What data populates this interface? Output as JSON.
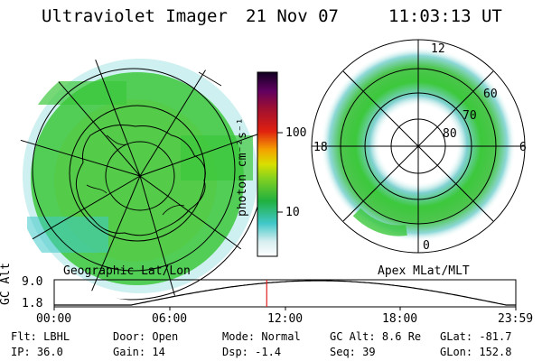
{
  "header": {
    "instrument": "Ultraviolet Imager",
    "date": "21 Nov 07",
    "time": "11:03:13 UT"
  },
  "colorbar": {
    "unit_label": "photon cm⁻²s⁻¹",
    "ticks": [
      "100",
      "10"
    ]
  },
  "left_panel": {
    "label": "Geographic Lat/Lon"
  },
  "right_panel": {
    "label": "Apex MLat/MLT",
    "mlt_labels": {
      "top": "12",
      "bottom": "0",
      "left": "18",
      "right": "6"
    },
    "mlat_labels": [
      "60",
      "70",
      "80"
    ]
  },
  "altitude_plot": {
    "ylabel": "GC Alt",
    "y_ticks": [
      "9.0",
      "1.8"
    ],
    "x_ticks": [
      "00:00",
      "06:00",
      "12:00",
      "18:00",
      "23:59"
    ],
    "current_marker_hour": 11.05
  },
  "footer": {
    "row1": [
      {
        "key": "Flt:",
        "value": "LBHL"
      },
      {
        "key": "Door:",
        "value": "Open"
      },
      {
        "key": "Mode:",
        "value": "Normal"
      },
      {
        "key": "GC Alt:",
        "value": "8.6 Re"
      },
      {
        "key": "GLat:",
        "value": "-81.7"
      }
    ],
    "row2": [
      {
        "key": "IP:",
        "value": "36.0"
      },
      {
        "key": "Gain:",
        "value": "14"
      },
      {
        "key": "Dsp:",
        "value": "-1.4"
      },
      {
        "key": "Seq:",
        "value": "39"
      },
      {
        "key": "GLon:",
        "value": "152.8"
      }
    ]
  },
  "colors": {
    "aurora_green": "#3cc83c",
    "aurora_cyan": "#40c8c8",
    "marker_red": "#e02020"
  }
}
